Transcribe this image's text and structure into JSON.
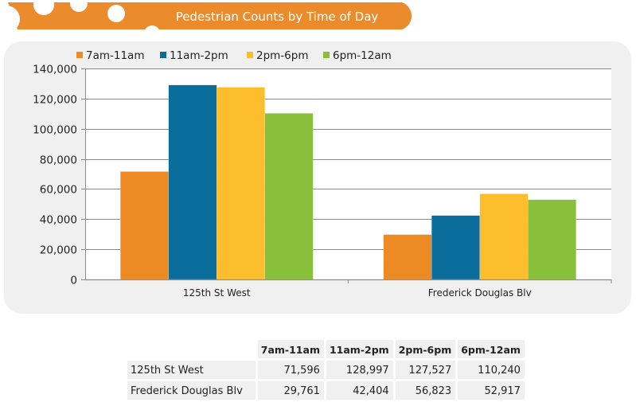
{
  "colors": {
    "banner": "#ec8b2c",
    "panel_bg": "#f0f0f0",
    "grid": "#8c8c8c"
  },
  "chart_data": {
    "type": "bar",
    "title": "Pedestrian Counts by Time of Day",
    "xlabel": "",
    "ylabel": "",
    "categories": [
      "125th St West",
      "Frederick Douglas Blv"
    ],
    "series": [
      {
        "name": "7am-11am",
        "color": "#ec8b24",
        "values": [
          71596,
          29761
        ]
      },
      {
        "name": "11am-2pm",
        "color": "#0a6d9c",
        "values": [
          128997,
          42404
        ]
      },
      {
        "name": "2pm-6pm",
        "color": "#fdbe2e",
        "values": [
          127527,
          56823
        ]
      },
      {
        "name": "6pm-12am",
        "color": "#89c03b",
        "values": [
          110240,
          52917
        ]
      }
    ],
    "ylim": [
      0,
      140000
    ],
    "yticks": [
      0,
      20000,
      40000,
      60000,
      80000,
      100000,
      120000,
      140000
    ],
    "ytick_labels": [
      "0",
      "20,000",
      "40,000",
      "60,000",
      "80,000",
      "100,000",
      "120,000",
      "140,000"
    ],
    "grid": true,
    "legend": "top-left"
  },
  "table": {
    "headers": [
      "7am-11am",
      "11am-2pm",
      "2pm-6pm",
      "6pm-12am"
    ],
    "rows": [
      {
        "label": "125th St West",
        "cells": [
          "71,596",
          "128,997",
          "127,527",
          "110,240"
        ]
      },
      {
        "label": "Frederick Douglas Blv",
        "cells": [
          "29,761",
          "42,404",
          "56,823",
          "52,917"
        ]
      }
    ]
  }
}
